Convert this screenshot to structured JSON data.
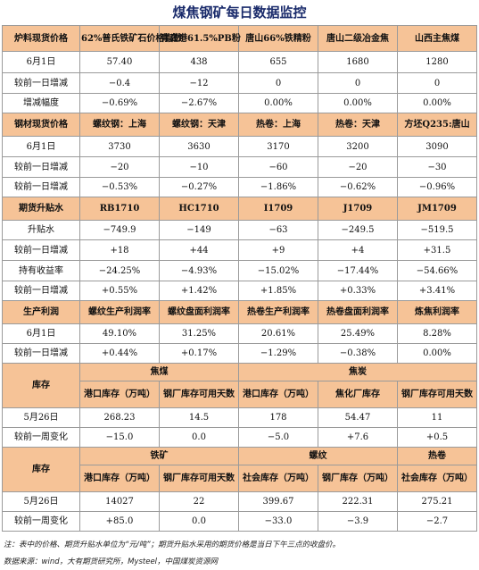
{
  "title": "煤焦钢矿每日数据监控",
  "sections": {
    "furnace": {
      "header": [
        "炉料现货价格",
        "62%普氏铁矿石价格指数",
        "青岛港61.5%PB粉",
        "唐山66%铁精粉",
        "唐山二级冶金焦",
        "山西主焦煤"
      ],
      "rows": [
        {
          "label": "6月1日",
          "values": [
            "57.40",
            "438",
            "655",
            "1680",
            "1280"
          ]
        },
        {
          "label": "较前一日增减",
          "values": [
            "−0.4",
            "−12",
            "0",
            "0",
            "0"
          ]
        },
        {
          "label": "增减幅度",
          "values": [
            "−0.69%",
            "−2.67%",
            "0.00%",
            "0.00%",
            "0.00%"
          ]
        }
      ]
    },
    "steel": {
      "header": [
        "钢材现货价格",
        "螺纹钢：上海",
        "螺纹钢：天津",
        "热卷：上海",
        "热卷：天津",
        "方坯Q235:唐山"
      ],
      "rows": [
        {
          "label": "6月1日",
          "values": [
            "3730",
            "3630",
            "3170",
            "3200",
            "3090"
          ]
        },
        {
          "label": "较前一日增减",
          "values": [
            "−20",
            "−10",
            "−60",
            "−20",
            "−30"
          ]
        },
        {
          "label": "较前一日增减",
          "values": [
            "−0.53%",
            "−0.27%",
            "−1.86%",
            "−0.62%",
            "−0.96%"
          ]
        }
      ]
    },
    "basis": {
      "header": [
        "期货升贴水",
        "RB1710",
        "HC1710",
        "I1709",
        "J1709",
        "JM1709"
      ],
      "rows": [
        {
          "label": "升贴水",
          "values": [
            "−749.9",
            "−149",
            "−63",
            "−249.5",
            "−519.5"
          ]
        },
        {
          "label": "较前一日增减",
          "values": [
            "+18",
            "+44",
            "+9",
            "+4",
            "+31.5"
          ]
        },
        {
          "label": "持有收益率",
          "values": [
            "−24.25%",
            "−4.93%",
            "−15.02%",
            "−17.44%",
            "−54.66%"
          ]
        },
        {
          "label": "较前一日增减",
          "values": [
            "+0.55%",
            "+1.42%",
            "+1.85%",
            "+0.33%",
            "+3.41%"
          ]
        }
      ]
    },
    "profit": {
      "header": [
        "生产利润",
        "螺纹生产利润率",
        "螺纹盘面利润率",
        "热卷生产利润率",
        "热卷盘面利润率",
        "炼焦利润率"
      ],
      "rows": [
        {
          "label": "6月1日",
          "values": [
            "49.10%",
            "31.25%",
            "20.61%",
            "25.49%",
            "8.28%"
          ]
        },
        {
          "label": "较前一日增减",
          "values": [
            "+0.44%",
            "+0.17%",
            "−1.29%",
            "−0.38%",
            "0.00%"
          ]
        }
      ]
    },
    "inventory1": {
      "label": "库存",
      "groups": [
        "焦煤",
        "焦炭"
      ],
      "subheaders": [
        "港口库存（万吨）",
        "钢厂库存可用天数",
        "港口库存（万吨）",
        "焦化厂库存",
        "钢厂库存可用天数"
      ],
      "rows": [
        {
          "label": "5月26日",
          "values": [
            "268.23",
            "14.5",
            "178",
            "54.47",
            "11"
          ]
        },
        {
          "label": "较前一周变化",
          "values": [
            "−15.0",
            "0.0",
            "−5.0",
            "+7.6",
            "+0.5"
          ]
        }
      ]
    },
    "inventory2": {
      "label": "库存",
      "groups": [
        "铁矿",
        "螺纹",
        "热卷"
      ],
      "subheaders": [
        "港口库存（万吨）",
        "钢厂库存可用天数",
        "社会库存（万吨）",
        "钢厂库存（万吨）",
        "社会库存（万吨）"
      ],
      "rows": [
        {
          "label": "5月26日",
          "values": [
            "14027",
            "22",
            "399.67",
            "222.31",
            "275.21"
          ]
        },
        {
          "label": "较前一周变化",
          "values": [
            "+85.0",
            "0.0",
            "−33.0",
            "−3.9",
            "−2.7"
          ]
        }
      ]
    }
  },
  "notes": {
    "note1": "注：表中的价格、期货升贴水单位为“元/吨”；期货升贴水采用的期货价格是当日下午三点的收盘价。",
    "source": "数据来源：wind，大有期货研究所，Mysteel，中国煤炭资源网"
  },
  "colors": {
    "header_bg": "#f6c397",
    "positive": "#e0221b",
    "negative": "#1aa347",
    "title": "#1a2b6b"
  }
}
